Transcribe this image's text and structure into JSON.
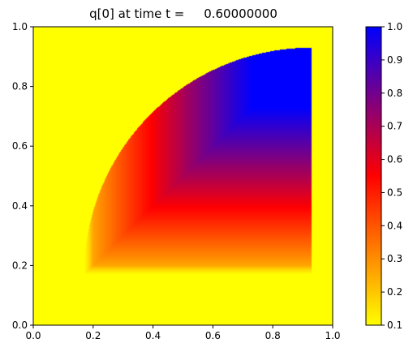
{
  "chart_data": {
    "type": "heatmap",
    "title": "q[0] at time t =     0.60000000",
    "xlabel": "",
    "ylabel": "",
    "xlim": [
      0.0,
      1.0
    ],
    "ylim": [
      0.0,
      1.0
    ],
    "x_ticks": [
      "0.0",
      "0.2",
      "0.4",
      "0.6",
      "0.8",
      "1.0"
    ],
    "y_ticks": [
      "0.0",
      "0.2",
      "0.4",
      "0.6",
      "0.8",
      "1.0"
    ],
    "colorbar": {
      "vmin": 0.1,
      "vmax": 1.0,
      "ticks": [
        "0.1",
        "0.2",
        "0.3",
        "0.4",
        "0.5",
        "0.6",
        "0.7",
        "0.8",
        "0.9",
        "1.0"
      ],
      "colormap": [
        "#ffff00",
        "#ff0000",
        "#0000ff"
      ]
    },
    "background_value": 0.1,
    "grid": false,
    "region": {
      "description_free": true,
      "bounds": {
        "x_min": 0.17,
        "x_max": 0.93,
        "y_min": 0.17,
        "y_max": 0.93
      }
    }
  }
}
